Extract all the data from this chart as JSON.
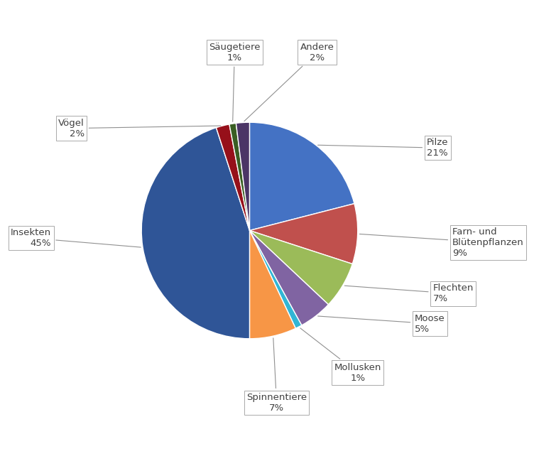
{
  "labels": [
    "Pilze",
    "Farn- und\nBlütenpflanzen",
    "Flechten",
    "Moose",
    "Mollusken",
    "Spinnentiere",
    "Insekten",
    "Vögel",
    "Säugetiere",
    "Andere"
  ],
  "label_pcts": [
    "21%",
    "9%",
    "7%",
    "5%",
    "1%",
    "7%",
    "45%",
    "2%",
    "1%",
    "2%"
  ],
  "values": [
    21,
    9,
    7,
    5,
    1,
    7,
    45,
    2,
    1,
    2
  ],
  "colors": [
    "#4472C4",
    "#C0504D",
    "#9BBB59",
    "#8064A2",
    "#31B6D5",
    "#F79646",
    "#2F5597",
    "#96101A",
    "#3A5E23",
    "#4B3566"
  ],
  "startangle": 90,
  "label_positions": [
    [
      1.18,
      0.55,
      "left",
      "center"
    ],
    [
      1.35,
      -0.08,
      "left",
      "center"
    ],
    [
      1.22,
      -0.42,
      "left",
      "center"
    ],
    [
      1.1,
      -0.62,
      "left",
      "center"
    ],
    [
      0.72,
      -0.88,
      "center",
      "top"
    ],
    [
      0.18,
      -1.08,
      "center",
      "top"
    ],
    [
      -1.32,
      -0.05,
      "right",
      "center"
    ],
    [
      -1.1,
      0.68,
      "right",
      "center"
    ],
    [
      -0.1,
      1.12,
      "center",
      "bottom"
    ],
    [
      0.45,
      1.12,
      "center",
      "bottom"
    ]
  ],
  "tip_r": 0.72
}
